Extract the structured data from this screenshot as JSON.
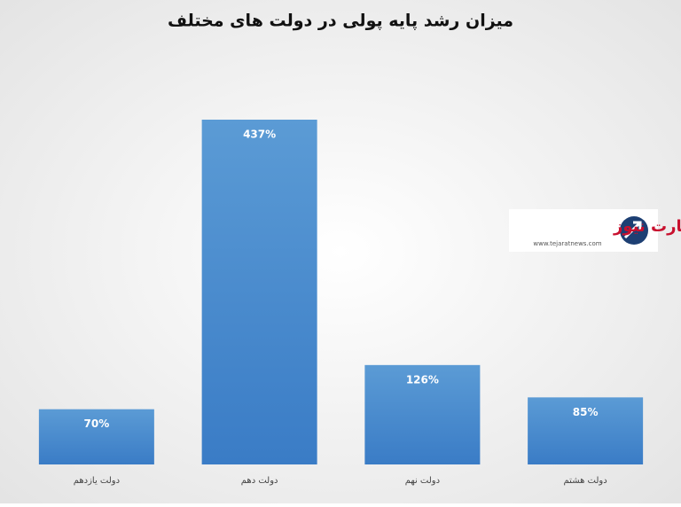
{
  "chart_data": {
    "type": "bar",
    "title": "میزان رشد پایه پولی در دولت های مختلف",
    "categories": [
      "دولت یازدهم",
      "دولت دهم",
      "دولت نهم",
      "دولت هشتم"
    ],
    "values": [
      70,
      437,
      126,
      85
    ],
    "value_labels": [
      "70%",
      "437%",
      "126%",
      "85%"
    ],
    "color": "#4a8fd3",
    "watermark": {
      "name": "تجارت نیوز",
      "url": "www.tejaratnews.com"
    }
  }
}
